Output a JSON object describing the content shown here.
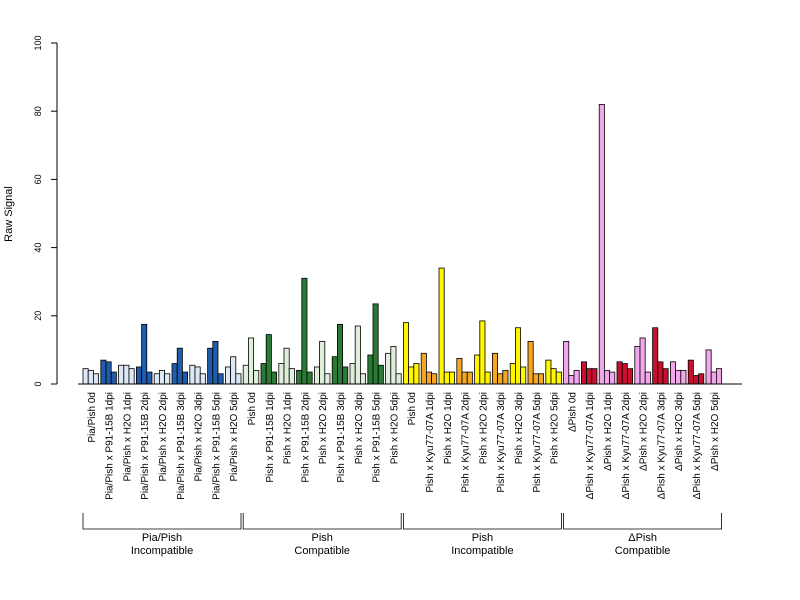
{
  "chart_data": {
    "type": "bar",
    "ylabel": "Raw Signal",
    "ylim": [
      0,
      100
    ],
    "yticks": [
      0,
      20,
      40,
      60,
      80,
      100
    ],
    "replicates_per_category": 3,
    "categories": [
      "Pia/Pish 0d",
      "Pia/Pish x P91-15B 1dpi",
      "Pia/Pish x H2O 1dpi",
      "Pia/Pish x P91-15B 2dpi",
      "Pia/Pish x H2O 2dpi",
      "Pia/Pish x P91-15B 3dpi",
      "Pia/Pish x H2O 3dpi",
      "Pia/Pish x P91-15B 5dpi",
      "Pia/Pish x H2O 5dpi",
      "Pish 0d",
      "Pish x P91-15B 1dpi",
      "Pish x H2O 1dpi",
      "Pish x P91-15B 2dpi",
      "Pish x H2O 2dpi",
      "Pish x P91-15B 3dpi",
      "Pish x H2O 3dpi",
      "Pish x P91-15B 5dpi",
      "Pish x H2O 5dpi",
      "Pish 0d",
      "Pish x Kyu77-07A 1dpi",
      "Pish x H2O 1dpi",
      "Pish x Kyu77-07A 2dpi",
      "Pish x H2O 2dpi",
      "Pish x Kyu77-07A 3dpi",
      "Pish x H2O 3dpi",
      "Pish x Kyu77-07A 5dpi",
      "Pish x H2O 5dpi",
      "ΔPish 0d",
      "ΔPish x Kyu77-07A 1dpi",
      "ΔPish x H2O 1dpi",
      "ΔPish x Kyu77-07A 2dpi",
      "ΔPish x H2O 2dpi",
      "ΔPish x Kyu77-07A 3dpi",
      "ΔPish x H2O 3dpi",
      "ΔPish x Kyu77-07A 5dpi",
      "ΔPish x H2O 5dpi"
    ],
    "values": [
      [
        4.5,
        4.0,
        3.0
      ],
      [
        7.0,
        6.5,
        3.5
      ],
      [
        5.5,
        5.5,
        4.5
      ],
      [
        5.0,
        17.5,
        3.5
      ],
      [
        3.0,
        4.0,
        3.0
      ],
      [
        6.0,
        10.5,
        3.5
      ],
      [
        5.5,
        5.0,
        3.0
      ],
      [
        10.5,
        12.5,
        3.0
      ],
      [
        5.0,
        8.0,
        3.0
      ],
      [
        5.5,
        13.5,
        4.0
      ],
      [
        6.0,
        14.5,
        3.5
      ],
      [
        6.0,
        10.5,
        4.5
      ],
      [
        4.0,
        31.0,
        3.5
      ],
      [
        5.0,
        12.5,
        3.0
      ],
      [
        8.0,
        17.5,
        5.0
      ],
      [
        6.0,
        17.0,
        3.0
      ],
      [
        8.5,
        23.5,
        5.5
      ],
      [
        9.0,
        11.0,
        3.0
      ],
      [
        18.0,
        5.0,
        6.0
      ],
      [
        9.0,
        3.5,
        3.0
      ],
      [
        34.0,
        3.5,
        3.5
      ],
      [
        7.5,
        3.5,
        3.5
      ],
      [
        8.5,
        18.5,
        3.5
      ],
      [
        9.0,
        3.0,
        4.0
      ],
      [
        6.0,
        16.5,
        5.0
      ],
      [
        12.5,
        3.0,
        3.0
      ],
      [
        7.0,
        4.5,
        3.5
      ],
      [
        12.5,
        2.5,
        4.0
      ],
      [
        6.5,
        4.5,
        4.5
      ],
      [
        82.0,
        4.0,
        3.5
      ],
      [
        6.5,
        6.0,
        4.5
      ],
      [
        11.0,
        13.5,
        3.5
      ],
      [
        16.5,
        6.5,
        4.5
      ],
      [
        6.5,
        4.0,
        4.0
      ],
      [
        7.0,
        2.5,
        3.0
      ],
      [
        10.0,
        3.5,
        4.5
      ]
    ],
    "bar_colors": [
      [
        "#dde8f6",
        "#dde8f6",
        "#dde8f6"
      ],
      [
        "#1f5cab",
        "#1f5cab",
        "#1f5cab"
      ],
      [
        "#dde8f6",
        "#dde8f6",
        "#dde8f6"
      ],
      [
        "#1f5cab",
        "#1f5cab",
        "#1f5cab"
      ],
      [
        "#dde8f6",
        "#dde8f6",
        "#dde8f6"
      ],
      [
        "#1f5cab",
        "#1f5cab",
        "#1f5cab"
      ],
      [
        "#dde8f6",
        "#dde8f6",
        "#dde8f6"
      ],
      [
        "#1f5cab",
        "#1f5cab",
        "#1f5cab"
      ],
      [
        "#dde8f6",
        "#dde8f6",
        "#dde8f6"
      ],
      [
        "#e0efdc",
        "#e0efdc",
        "#e0efdc"
      ],
      [
        "#2a7a35",
        "#2a7a35",
        "#2a7a35"
      ],
      [
        "#e0efdc",
        "#e0efdc",
        "#e0efdc"
      ],
      [
        "#2a7a35",
        "#2a7a35",
        "#2a7a35"
      ],
      [
        "#e0efdc",
        "#e0efdc",
        "#e0efdc"
      ],
      [
        "#2a7a35",
        "#2a7a35",
        "#2a7a35"
      ],
      [
        "#e0efdc",
        "#e0efdc",
        "#e0efdc"
      ],
      [
        "#2a7a35",
        "#2a7a35",
        "#2a7a35"
      ],
      [
        "#e0efdc",
        "#e0efdc",
        "#e0efdc"
      ],
      [
        "#fff600",
        "#fff600",
        "#fff600"
      ],
      [
        "#f5a623",
        "#f5a623",
        "#f5a623"
      ],
      [
        "#fff600",
        "#fff600",
        "#fff600"
      ],
      [
        "#f5a623",
        "#f5a623",
        "#f5a623"
      ],
      [
        "#fff600",
        "#fff600",
        "#fff600"
      ],
      [
        "#f5a623",
        "#f5a623",
        "#f5a623"
      ],
      [
        "#fff600",
        "#fff600",
        "#fff600"
      ],
      [
        "#f5a623",
        "#f5a623",
        "#f5a623"
      ],
      [
        "#fff600",
        "#fff600",
        "#fff600"
      ],
      [
        "#f2a7ec",
        "#f2a7ec",
        "#f2a7ec"
      ],
      [
        "#c8102e",
        "#c8102e",
        "#c8102e"
      ],
      [
        "#f2a7ec",
        "#f2a7ec",
        "#f2a7ec"
      ],
      [
        "#c8102e",
        "#c8102e",
        "#c8102e"
      ],
      [
        "#f2a7ec",
        "#f2a7ec",
        "#f2a7ec"
      ],
      [
        "#c8102e",
        "#c8102e",
        "#c8102e"
      ],
      [
        "#f2a7ec",
        "#f2a7ec",
        "#f2a7ec"
      ],
      [
        "#c8102e",
        "#c8102e",
        "#c8102e"
      ],
      [
        "#f2a7ec",
        "#f2a7ec",
        "#f2a7ec"
      ]
    ],
    "groups": [
      {
        "line1": "Pia/Pish",
        "line2": "Incompatible",
        "start": 0,
        "end": 8
      },
      {
        "line1": "Pish",
        "line2": "Compatible",
        "start": 9,
        "end": 17
      },
      {
        "line1": "Pish",
        "line2": "Incompatible",
        "start": 18,
        "end": 26
      },
      {
        "line1": "ΔPish",
        "line2": "Compatible",
        "start": 27,
        "end": 35
      }
    ],
    "grid": false,
    "legend": "none"
  }
}
